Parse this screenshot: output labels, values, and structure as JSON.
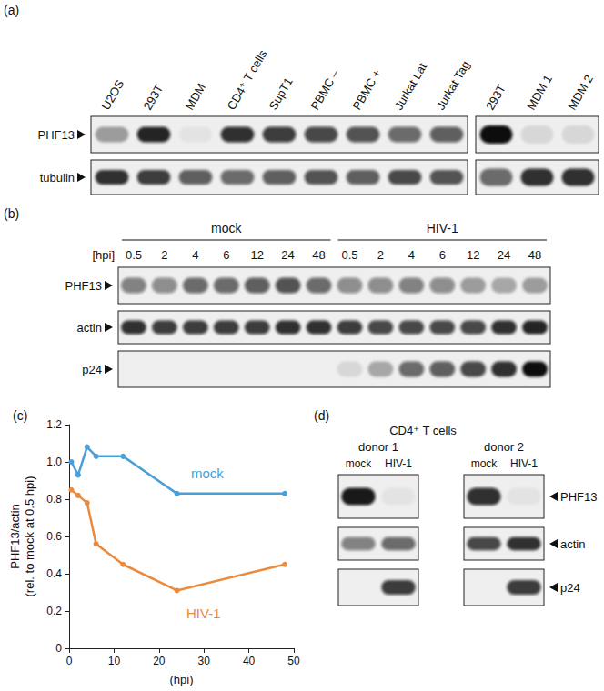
{
  "panels": {
    "a": {
      "label": "(a)",
      "lanes_left": [
        "U2OS",
        "293T",
        "MDM",
        "CD4⁺ T cells",
        "SupT1",
        "PBMC –",
        "PBMC +",
        "Jurkat Lat",
        "Jurkat Tag"
      ],
      "lanes_right": [
        "293T",
        "MDM 1",
        "MDM 2"
      ],
      "rows": [
        {
          "name": "PHF13",
          "left": [
            0.35,
            0.9,
            0.05,
            0.85,
            0.8,
            0.75,
            0.7,
            0.6,
            0.65
          ],
          "right": [
            1.0,
            0.1,
            0.1
          ]
        },
        {
          "name": "tubulin",
          "left": [
            0.85,
            0.8,
            0.65,
            0.6,
            0.65,
            0.7,
            0.65,
            0.75,
            0.7
          ],
          "right": [
            0.6,
            0.85,
            0.85
          ]
        }
      ]
    },
    "b": {
      "label": "(b)",
      "groups": [
        "mock",
        "HIV-1"
      ],
      "time_label": "[hpi]",
      "times": [
        0.5,
        2,
        4,
        6,
        12,
        24,
        48
      ],
      "rows": [
        {
          "name": "PHF13",
          "values": [
            0.5,
            0.45,
            0.6,
            0.6,
            0.65,
            0.7,
            0.6,
            0.45,
            0.45,
            0.5,
            0.45,
            0.35,
            0.3,
            0.35
          ]
        },
        {
          "name": "actin",
          "values": [
            0.85,
            0.8,
            0.8,
            0.8,
            0.8,
            0.85,
            0.85,
            0.8,
            0.75,
            0.75,
            0.75,
            0.75,
            0.85,
            0.9
          ]
        },
        {
          "name": "p24",
          "values": [
            0,
            0,
            0,
            0,
            0,
            0,
            0,
            0.1,
            0.3,
            0.6,
            0.65,
            0.75,
            0.85,
            1.0
          ]
        }
      ]
    },
    "c": {
      "label": "(c)"
    },
    "d": {
      "label": "(d)",
      "title": "CD4⁺ T cells",
      "donors": [
        "donor 1",
        "donor 2"
      ],
      "lanes": [
        "mock",
        "HIV-1"
      ],
      "rows": [
        {
          "name": "PHF13",
          "donor_values": [
            [
              0.95,
              0.05
            ],
            [
              0.85,
              0.05
            ]
          ]
        },
        {
          "name": "actin",
          "donor_values": [
            [
              0.5,
              0.6
            ],
            [
              0.75,
              0.85
            ]
          ]
        },
        {
          "name": "p24",
          "donor_values": [
            [
              0,
              0.8
            ],
            [
              0,
              0.8
            ]
          ]
        }
      ]
    }
  },
  "chart_data": {
    "type": "line",
    "x": [
      0.5,
      2,
      4,
      6,
      12,
      24,
      48
    ],
    "xlabel": "(hpi)",
    "ylabel": "PHF13/actin\n(rel. to mock at 0.5 hpi)",
    "xlim": [
      0,
      50
    ],
    "xticks": [
      0,
      10,
      20,
      30,
      40,
      50
    ],
    "ylim": [
      0,
      1.2
    ],
    "yticks": [
      0,
      {
        "value": 0.2,
        "label": "0.2"
      },
      {
        "value": 0.4,
        "label": "0.4"
      },
      {
        "value": 0.6,
        "label": "0.6"
      },
      {
        "value": 0.8,
        "label": "0.8"
      },
      {
        "value": 1,
        "label": "1.0"
      },
      {
        "value": 1.2,
        "label": "1.2"
      }
    ],
    "grid": false,
    "marker": "circle",
    "series": [
      {
        "name": "mock",
        "color": "#4a9fd8",
        "values": [
          1.0,
          0.93,
          1.08,
          1.03,
          1.03,
          0.83,
          0.83
        ]
      },
      {
        "name": "HIV-1",
        "color": "#ec8a3c",
        "values": [
          0.85,
          0.82,
          0.78,
          0.56,
          0.45,
          0.31,
          0.45
        ]
      }
    ]
  }
}
